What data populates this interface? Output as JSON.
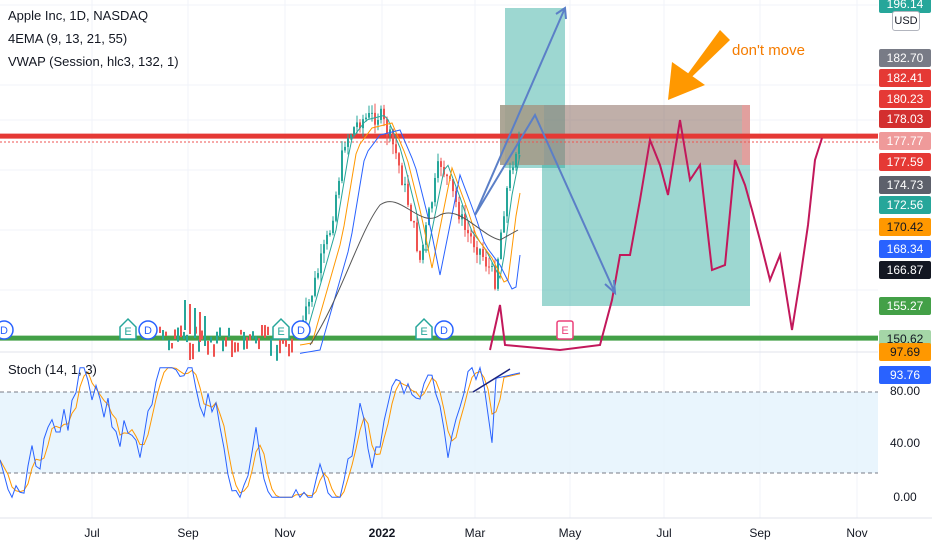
{
  "legend": {
    "title": "Apple Inc, 1D, NASDAQ",
    "ema": "4EMA (9, 13, 21, 55)",
    "vwap": "VWAP (Session, hlc3, 132, 1)",
    "stoch": "Stoch (14, 1, 3)"
  },
  "annotation": {
    "text": "don't move",
    "color": "#f57c00"
  },
  "currency": "USD",
  "colors": {
    "up": "#26a69a",
    "down": "#ef5350",
    "projection": "#c2185b",
    "resistance": "#e53935",
    "support": "#43a047",
    "arrow": "#5b7fc7",
    "tp_zone": "#26a69a",
    "sl_zone": "#8d6e63",
    "stoch_k": "#2962ff",
    "stoch_d": "#ff9800"
  },
  "chart_data": {
    "type": "candlestick",
    "x_ticks": [
      "Jul",
      "Sep",
      "Nov",
      "2022",
      "Mar",
      "May",
      "Jul",
      "Sep",
      "Nov"
    ],
    "price_scale": {
      "ticks": [
        "196.14",
        "182.70",
        "182.41",
        "180.23",
        "178.03",
        "177.77",
        "177.59",
        "174.73",
        "172.56",
        "170.42",
        "168.34",
        "166.87",
        "155.27",
        "150.62"
      ]
    },
    "price_labels": [
      {
        "value": "196.14",
        "bg": "#26a69a",
        "fg": "#ffffff"
      },
      {
        "value": "182.70",
        "bg": "#787b86",
        "fg": "#ffffff"
      },
      {
        "value": "182.41",
        "bg": "#e53935",
        "fg": "#ffffff"
      },
      {
        "value": "180.23",
        "bg": "#e53935",
        "fg": "#ffffff"
      },
      {
        "value": "178.03",
        "bg": "#d32f2f",
        "fg": "#ffffff"
      },
      {
        "value": "177.77",
        "bg": "#ef9a9a",
        "fg": "#ffffff"
      },
      {
        "value": "177.59",
        "bg": "#e53935",
        "fg": "#ffffff"
      },
      {
        "value": "174.73",
        "bg": "#5d606b",
        "fg": "#ffffff"
      },
      {
        "value": "172.56",
        "bg": "#26a69a",
        "fg": "#ffffff"
      },
      {
        "value": "170.42",
        "bg": "#ff9800",
        "fg": "#131722"
      },
      {
        "value": "168.34",
        "bg": "#2962ff",
        "fg": "#ffffff"
      },
      {
        "value": "166.87",
        "bg": "#131722",
        "fg": "#ffffff"
      },
      {
        "value": "155.27",
        "bg": "#43a047",
        "fg": "#ffffff"
      },
      {
        "value": "150.62",
        "bg": "#a5d6a7",
        "fg": "#131722"
      }
    ],
    "resistance_level": 178.03,
    "support_level": 150.62,
    "events": [
      "D",
      "E",
      "D",
      "E",
      "D",
      "E",
      "D",
      "E"
    ],
    "stoch": {
      "k_last": 93.76,
      "d_last": 97.69,
      "levels": [
        80,
        20
      ],
      "ticks": [
        "97.69",
        "93.76",
        "80.00",
        "40.00",
        "0.00"
      ],
      "tick_labels": [
        {
          "value": "97.69",
          "bg": "#ff9800",
          "fg": "#131722"
        },
        {
          "value": "93.76",
          "bg": "#2962ff",
          "fg": "#ffffff"
        }
      ],
      "plain_ticks": [
        "80.00",
        "40.00",
        "0.00"
      ]
    }
  }
}
